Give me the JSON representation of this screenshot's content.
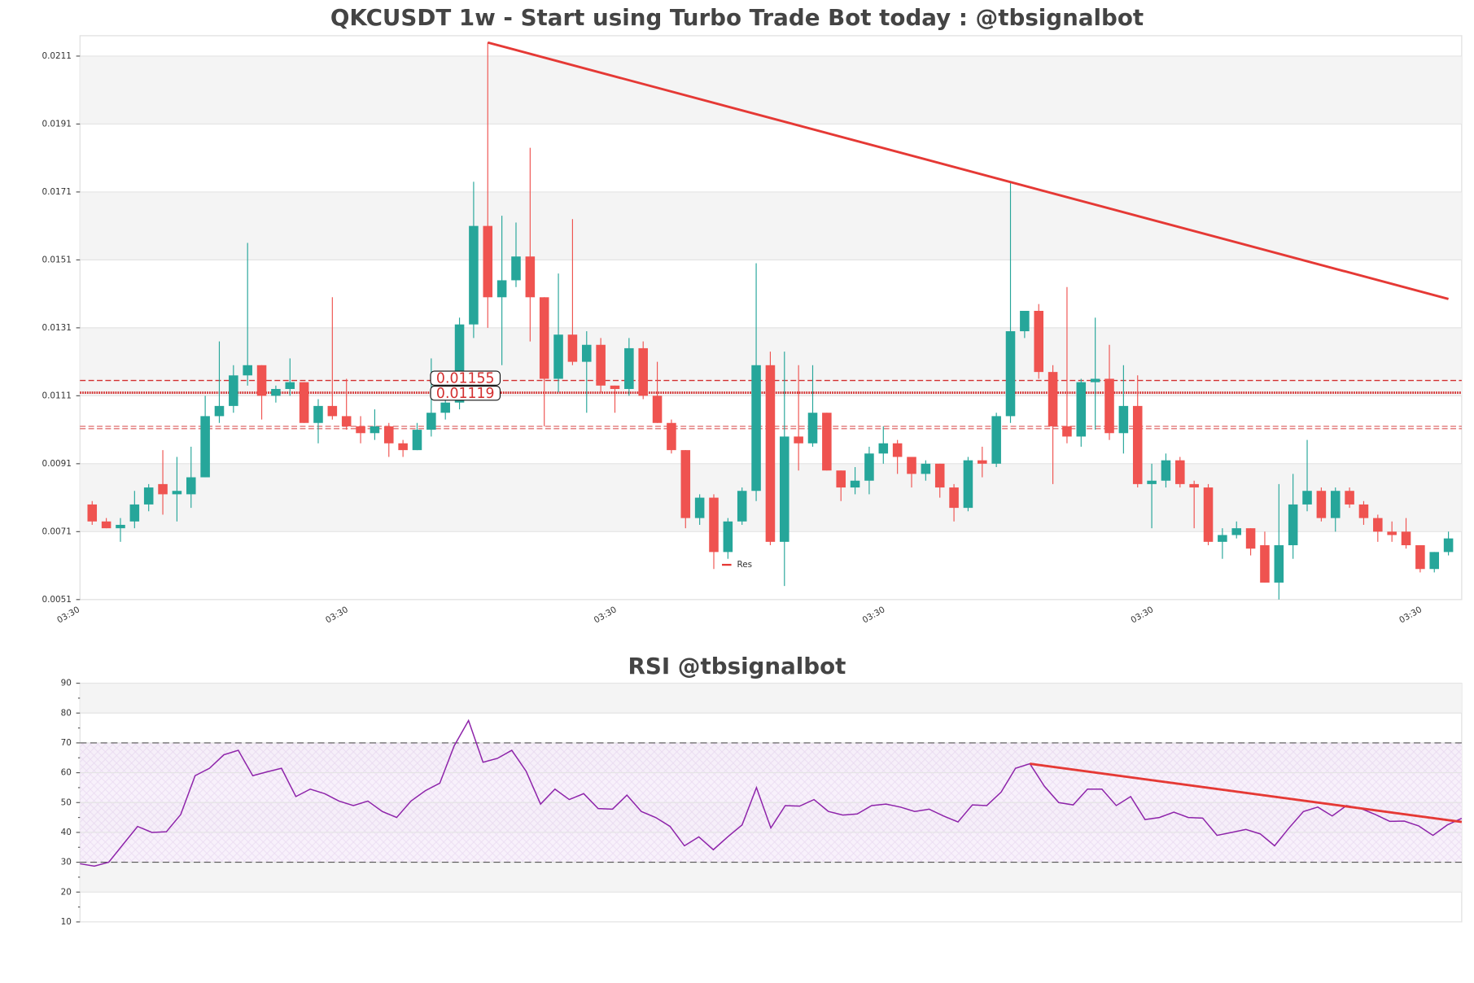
{
  "chart_data": [
    {
      "type": "candlestick",
      "title": "QKCUSDT 1w - Start using Turbo Trade Bot today : @tbsignalbot",
      "categories": [
        "03:30",
        null,
        null,
        null,
        null,
        null,
        null,
        null,
        null,
        null,
        null,
        null,
        null,
        null,
        null,
        null,
        null,
        null,
        null,
        "03:30",
        null,
        null,
        null,
        null,
        null,
        null,
        null,
        null,
        null,
        null,
        null,
        null,
        null,
        null,
        null,
        null,
        null,
        null,
        "03:30",
        null,
        null,
        null,
        null,
        null,
        null,
        null,
        null,
        null,
        null,
        null,
        null,
        null,
        null,
        null,
        null,
        null,
        null,
        "03:30",
        null,
        null,
        null,
        null,
        null,
        null,
        null,
        null,
        null,
        null,
        null,
        null,
        null,
        null,
        null,
        null,
        null,
        null,
        "03:30",
        null,
        null,
        null,
        null,
        null,
        null,
        null,
        null,
        null,
        null,
        null,
        null,
        null,
        null,
        null,
        null,
        null,
        null,
        "03:30",
        null
      ],
      "open": [
        0.0079,
        0.0074,
        0.0072,
        0.0074,
        0.0079,
        0.0085,
        0.0082,
        0.0082,
        0.0087,
        0.0105,
        0.0108,
        0.0117,
        0.012,
        0.0111,
        0.0113,
        0.0115,
        0.0103,
        0.0108,
        0.0105,
        0.0102,
        0.01,
        0.0102,
        0.0097,
        0.0095,
        0.0101,
        0.0106,
        0.0109,
        0.0132,
        0.0161,
        0.014,
        0.0145,
        0.0152,
        0.014,
        0.0116,
        0.0129,
        0.0121,
        0.0126,
        0.0114,
        0.0113,
        0.0125,
        0.0111,
        0.0103,
        0.0095,
        0.0075,
        0.0081,
        0.0065,
        0.0074,
        0.0083,
        0.012,
        0.0068,
        0.0099,
        0.0097,
        0.0106,
        0.0089,
        0.0084,
        0.0086,
        0.0094,
        0.0097,
        0.0093,
        0.0088,
        0.0091,
        0.0084,
        0.0078,
        0.0092,
        0.0091,
        0.0105,
        0.013,
        0.0136,
        0.0118,
        0.0102,
        0.0099,
        0.0115,
        0.0116,
        0.01,
        0.0108,
        0.0085,
        0.0086,
        0.0092,
        0.0085,
        0.0084,
        0.0068,
        0.007,
        0.0072,
        0.0067,
        0.0056,
        0.0067,
        0.0079,
        0.0083,
        0.0075,
        0.0083,
        0.0079,
        0.0075,
        0.0071,
        0.0071,
        0.0067,
        0.006,
        0.0065
      ],
      "high": [
        0.008,
        0.0075,
        0.0075,
        0.0083,
        0.0085,
        0.0095,
        0.0093,
        0.0096,
        0.0111,
        0.0127,
        0.012,
        0.0156,
        0.012,
        0.0114,
        0.0122,
        0.0115,
        0.011,
        0.014,
        0.0116,
        0.0105,
        0.0107,
        0.0103,
        0.0098,
        0.0103,
        0.0122,
        0.0115,
        0.0134,
        0.0174,
        0.0215,
        0.0164,
        0.0162,
        0.0184,
        0.014,
        0.0147,
        0.0163,
        0.013,
        0.0128,
        0.0114,
        0.0128,
        0.0127,
        0.0121,
        0.0104,
        0.0095,
        0.0082,
        0.0082,
        0.0075,
        0.0084,
        0.015,
        0.0124,
        0.0124,
        0.012,
        0.012,
        0.0106,
        0.0089,
        0.009,
        0.0096,
        0.0102,
        0.0098,
        0.0093,
        0.0092,
        0.0091,
        0.0085,
        0.0093,
        0.0096,
        0.0106,
        0.0174,
        0.0136,
        0.0138,
        0.012,
        0.0143,
        0.0116,
        0.0134,
        0.0126,
        0.012,
        0.0117,
        0.0091,
        0.0094,
        0.0093,
        0.0086,
        0.0085,
        0.0072,
        0.0074,
        0.0072,
        0.0071,
        0.0085,
        0.0088,
        0.0098,
        0.0084,
        0.0084,
        0.0084,
        0.008,
        0.0076,
        0.0074,
        0.0075,
        0.0067,
        0.0065,
        0.0071
      ],
      "low": [
        0.0073,
        0.0072,
        0.0068,
        0.0072,
        0.0077,
        0.0076,
        0.0074,
        0.0078,
        0.0087,
        0.0103,
        0.0106,
        0.0114,
        0.0104,
        0.0109,
        0.0111,
        0.0103,
        0.0097,
        0.0104,
        0.0101,
        0.0097,
        0.0098,
        0.0093,
        0.0093,
        0.0095,
        0.0099,
        0.0104,
        0.0107,
        0.0128,
        0.0131,
        0.012,
        0.0143,
        0.0127,
        0.0102,
        0.0112,
        0.012,
        0.0106,
        0.0112,
        0.0106,
        0.0111,
        0.011,
        0.0103,
        0.0094,
        0.0072,
        0.0073,
        0.006,
        0.0063,
        0.0073,
        0.008,
        0.0067,
        0.0055,
        0.0089,
        0.0096,
        0.0089,
        0.008,
        0.0082,
        0.0082,
        0.0091,
        0.0088,
        0.0084,
        0.0086,
        0.0081,
        0.0074,
        0.0077,
        0.0087,
        0.009,
        0.0103,
        0.0128,
        0.0116,
        0.0085,
        0.0097,
        0.0096,
        0.0101,
        0.0098,
        0.0094,
        0.0084,
        0.0072,
        0.0084,
        0.0084,
        0.0072,
        0.0067,
        0.0063,
        0.0069,
        0.0064,
        0.0056,
        0.0051,
        0.0063,
        0.0077,
        0.0074,
        0.0071,
        0.0078,
        0.0073,
        0.0068,
        0.0068,
        0.0066,
        0.0059,
        0.0059,
        0.0064
      ],
      "close": [
        0.0074,
        0.0072,
        0.0073,
        0.0079,
        0.0084,
        0.0082,
        0.0083,
        0.0087,
        0.0105,
        0.0108,
        0.0117,
        0.012,
        0.0111,
        0.0113,
        0.0115,
        0.0103,
        0.0108,
        0.0105,
        0.0102,
        0.01,
        0.0102,
        0.0097,
        0.0095,
        0.0101,
        0.0106,
        0.0109,
        0.0132,
        0.0161,
        0.014,
        0.0145,
        0.0152,
        0.014,
        0.0116,
        0.0129,
        0.0121,
        0.0126,
        0.0114,
        0.0113,
        0.0125,
        0.0111,
        0.0103,
        0.0095,
        0.0075,
        0.0081,
        0.0065,
        0.0074,
        0.0083,
        0.012,
        0.0068,
        0.0099,
        0.0097,
        0.0106,
        0.0089,
        0.0084,
        0.0086,
        0.0094,
        0.0097,
        0.0093,
        0.0088,
        0.0091,
        0.0084,
        0.0078,
        0.0092,
        0.0091,
        0.0105,
        0.013,
        0.0136,
        0.0118,
        0.0102,
        0.0099,
        0.0115,
        0.0116,
        0.01,
        0.0108,
        0.0085,
        0.0086,
        0.0092,
        0.0085,
        0.0084,
        0.0068,
        0.007,
        0.0072,
        0.0066,
        0.0056,
        0.0067,
        0.0079,
        0.0083,
        0.0075,
        0.0083,
        0.0079,
        0.0075,
        0.0071,
        0.007,
        0.0067,
        0.006,
        0.0065,
        0.0069
      ],
      "up_color": "#26a69a",
      "down_color": "#ef5350",
      "ylim": [
        0.0051,
        0.0217
      ],
      "yticks": [
        0.0051,
        0.0071,
        0.0091,
        0.0111,
        0.0131,
        0.0151,
        0.0171,
        0.0191,
        0.0211
      ],
      "price_lines": [
        {
          "value": 0.01155,
          "style": "dashed"
        },
        {
          "value": 0.01119,
          "style": "dotted"
        }
      ],
      "support_lines": [
        0.0102,
        0.01013
      ],
      "line_color": "#d32f2f",
      "trendline": {
        "name": "Res",
        "x": [
          28,
          96
        ],
        "y": [
          0.0215,
          0.01395
        ],
        "color": "#e53935"
      },
      "legend": "lower center"
    },
    {
      "type": "line",
      "title": "RSI @tbsignalbot",
      "values": [
        29.5,
        28.7,
        30,
        36,
        42,
        40,
        40.2,
        46,
        59,
        61.5,
        66,
        67.5,
        59,
        60.3,
        61.5,
        52,
        54.5,
        53,
        50.5,
        49,
        50.5,
        47,
        45,
        50.5,
        54,
        56.5,
        69,
        77.5,
        63.5,
        64.8,
        67.5,
        60.5,
        49.5,
        54.5,
        51,
        53,
        48,
        47.8,
        52.5,
        47,
        45,
        42,
        35.5,
        38.5,
        34.2,
        38.5,
        42.5,
        55,
        41.5,
        49,
        48.8,
        51,
        47,
        45.8,
        46.2,
        49,
        49.5,
        48.5,
        47,
        47.8,
        45.5,
        43.5,
        49.2,
        49,
        53.5,
        61.5,
        63,
        55.5,
        50,
        49.2,
        54.5,
        54.5,
        49,
        52,
        44.3,
        45,
        46.8,
        45,
        44.8,
        39,
        40,
        41,
        39.5,
        35.5,
        41.5,
        47,
        48.5,
        45.5,
        49,
        48,
        46,
        43.7,
        43.8,
        42.2,
        39,
        42.5,
        44.7
      ],
      "color": "#8e24aa",
      "ylim": [
        10,
        90
      ],
      "yticks": [
        10,
        20,
        30,
        40,
        50,
        60,
        70,
        80,
        90
      ],
      "minor_yticks": [
        15,
        25,
        35,
        45,
        55,
        65,
        75,
        85
      ],
      "hlines": [
        70,
        30
      ],
      "trendline": {
        "x": [
          66,
          96
        ],
        "y": [
          63,
          43.5
        ],
        "color": "#e53935"
      }
    }
  ]
}
